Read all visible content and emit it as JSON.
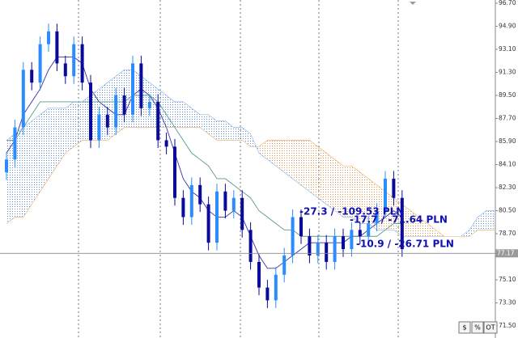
{
  "chart_data": {
    "type": "candlestick",
    "categories": [
      null,
      null,
      null,
      null,
      null,
      null,
      null,
      null,
      null,
      null,
      null,
      null,
      null,
      null,
      null,
      null,
      null,
      null,
      null,
      null,
      null,
      null,
      null,
      null,
      null,
      null,
      null,
      null,
      null,
      null,
      null,
      null,
      null,
      null,
      null,
      null,
      null,
      null,
      null,
      null,
      null,
      null,
      null,
      null,
      null,
      null,
      null,
      null,
      null,
      null,
      null,
      null,
      null,
      null,
      null,
      null,
      null,
      null,
      null
    ],
    "open": [
      83.5,
      84.5,
      87,
      91.5,
      90.5,
      93.5,
      94.5,
      92,
      91,
      93.5,
      90.5,
      86,
      88,
      87,
      89.5,
      88,
      92,
      88.5,
      89,
      86,
      85.5,
      81.5,
      80,
      82.5,
      81,
      78,
      82,
      80.5,
      81.5,
      79,
      76.5,
      74.5,
      73.5,
      75.5,
      77,
      80,
      78.5,
      77,
      78,
      76.5,
      78.5,
      77.5,
      79,
      78.5,
      79.5,
      80.5,
      83,
      81.5,
      null,
      null,
      null,
      null,
      null,
      null,
      null,
      null,
      null,
      null,
      null
    ],
    "high": [
      85.1,
      87.6,
      92.1,
      92.1,
      94.1,
      95.1,
      95.1,
      92.6,
      94.1,
      94.1,
      91.1,
      88.6,
      88.6,
      90.1,
      90.1,
      92.6,
      92.6,
      89.6,
      89.6,
      86.6,
      86.1,
      82.1,
      83.1,
      83.1,
      81.6,
      82.6,
      82.6,
      82.1,
      82.1,
      79.6,
      77.1,
      75.1,
      76.1,
      77.6,
      80.6,
      80.6,
      79.1,
      78.6,
      78.6,
      79.1,
      79.1,
      79.6,
      79.6,
      80.1,
      81.1,
      83.6,
      83.6,
      82.1,
      null,
      null,
      null,
      null,
      null,
      null,
      null,
      null,
      null,
      null,
      null
    ],
    "low": [
      82.9,
      83.9,
      86.4,
      89.9,
      89.9,
      92.9,
      91.4,
      90.4,
      90.4,
      89.9,
      85.4,
      85.4,
      86.4,
      86.4,
      87.4,
      87.4,
      87.9,
      87.9,
      85.4,
      84.9,
      80.9,
      79.4,
      79.4,
      80.4,
      77.4,
      77.4,
      79.9,
      79.9,
      78.4,
      75.9,
      73.9,
      72.9,
      72.9,
      74.9,
      76.4,
      77.9,
      76.4,
      76.4,
      75.9,
      75.9,
      76.9,
      76.9,
      77.9,
      77.9,
      78.9,
      79.9,
      80.9,
      76.9,
      null,
      null,
      null,
      null,
      null,
      null,
      null,
      null,
      null,
      null,
      null
    ],
    "close": [
      84.5,
      87,
      91.5,
      90.5,
      93.5,
      94.5,
      92,
      91,
      93.5,
      90.5,
      86,
      88,
      87,
      89.5,
      88,
      92,
      88.5,
      89,
      86,
      85.5,
      81.5,
      80,
      82.5,
      81,
      78,
      82,
      80.5,
      81.5,
      79,
      76.5,
      74.5,
      73.5,
      75.5,
      77,
      80,
      78.5,
      77,
      78,
      76.5,
      78.5,
      77.5,
      79,
      78.5,
      79.5,
      80.5,
      83,
      81.5,
      77.5,
      null,
      null,
      null,
      null,
      null,
      null,
      null,
      null,
      null,
      null,
      null
    ],
    "up_color": "#2a8cff",
    "down_color": "#0a0a9a",
    "series": [
      {
        "color": "#3030b0",
        "values": [
          85,
          86,
          88,
          89,
          90,
          91.5,
          92.5,
          92.5,
          92.5,
          92,
          90,
          89,
          88.5,
          88,
          88,
          89.5,
          90,
          89.5,
          88.5,
          87,
          85,
          83,
          82,
          81.5,
          80.5,
          80,
          80,
          80.5,
          80,
          78.5,
          77,
          76,
          76,
          76.5,
          77,
          77.5,
          78,
          78,
          78,
          78,
          78,
          78.5,
          78.5,
          79,
          79.5,
          80,
          80.5,
          80,
          null,
          null,
          null,
          null,
          null,
          null,
          null,
          null,
          null,
          null,
          null
        ]
      },
      {
        "color": "#5a9a8a",
        "values": [
          86,
          86,
          87,
          88,
          89,
          89,
          89,
          89,
          89,
          89,
          89,
          89,
          89,
          89,
          89,
          89.5,
          89.5,
          89.5,
          89,
          88,
          87,
          86,
          85,
          84.5,
          84,
          83,
          83,
          82.5,
          82,
          81.5,
          80.5,
          80,
          79.5,
          79,
          79,
          78.5,
          78.5,
          78.5,
          78.5,
          78.5,
          78.5,
          78.5,
          78.5,
          78.5,
          78.5,
          79,
          79.5,
          79.5,
          null,
          null,
          null,
          null,
          null,
          null,
          null,
          null,
          null,
          null,
          null
        ]
      },
      {
        "color": "#7fb0e8",
        "values": [
          86,
          86.5,
          87,
          87.5,
          88,
          88.5,
          88.5,
          88.5,
          89,
          89,
          89.5,
          90,
          90.5,
          91,
          91.5,
          91.5,
          91,
          90.5,
          90,
          89.5,
          89,
          89,
          88.5,
          88,
          88,
          87.5,
          87.5,
          87,
          87,
          86.5,
          85,
          84.5,
          84,
          83.5,
          83,
          82.5,
          82,
          81.5,
          81,
          80.5,
          80,
          80,
          79.5,
          79.5,
          79,
          79,
          79,
          78.5,
          78.5,
          78.5,
          78.5,
          78.5,
          78.5,
          78.5,
          78.5,
          79,
          80,
          80.5,
          80.5
        ]
      },
      {
        "color": "#e8a860",
        "values": [
          79.5,
          80,
          80,
          81,
          82,
          83,
          84,
          85,
          85.5,
          86,
          86,
          86,
          86,
          86.5,
          87,
          87,
          87,
          87,
          87,
          87,
          87,
          87,
          87,
          87,
          86.5,
          86,
          86,
          86,
          86,
          85.5,
          85.5,
          86,
          86,
          86,
          86,
          86,
          86,
          85.5,
          85,
          84.5,
          84,
          84,
          83.5,
          83,
          82.5,
          82,
          81.5,
          81,
          80.5,
          80,
          79.5,
          79,
          78.5,
          78.5,
          78.5,
          78.5,
          79,
          79,
          79
        ]
      }
    ],
    "cloud_colors": [
      "#4a7fd0",
      "#e08a30"
    ],
    "ylim": [
      70.75,
      96.95
    ],
    "yticks": [
      {
        "value": 96.7,
        "label": "96.70"
      },
      {
        "value": 94.9,
        "label": "94.90"
      },
      {
        "value": 93.1,
        "label": "93.10"
      },
      {
        "value": 91.3,
        "label": "91.30"
      },
      {
        "value": 89.5,
        "label": "89.50"
      },
      {
        "value": 87.7,
        "label": "87.70"
      },
      {
        "value": 85.9,
        "label": "85.90"
      },
      {
        "value": 84.1,
        "label": "84.10"
      },
      {
        "value": 82.3,
        "label": "82.30"
      },
      {
        "value": 80.5,
        "label": "80.50"
      },
      {
        "value": 78.7,
        "label": "78.70"
      },
      {
        "value": 75.1,
        "label": "75.10"
      },
      {
        "value": 73.3,
        "label": "73.30"
      },
      {
        "value": 71.5,
        "label": "71.50"
      }
    ],
    "current_price": 77.17,
    "annotations": [
      "-27.3 / -109.53 PLN",
      "-17.7 / -71.64 PLN",
      "-10.9 / -26.71 PLN"
    ],
    "toolbar": [
      "$",
      "%",
      "OT"
    ]
  }
}
